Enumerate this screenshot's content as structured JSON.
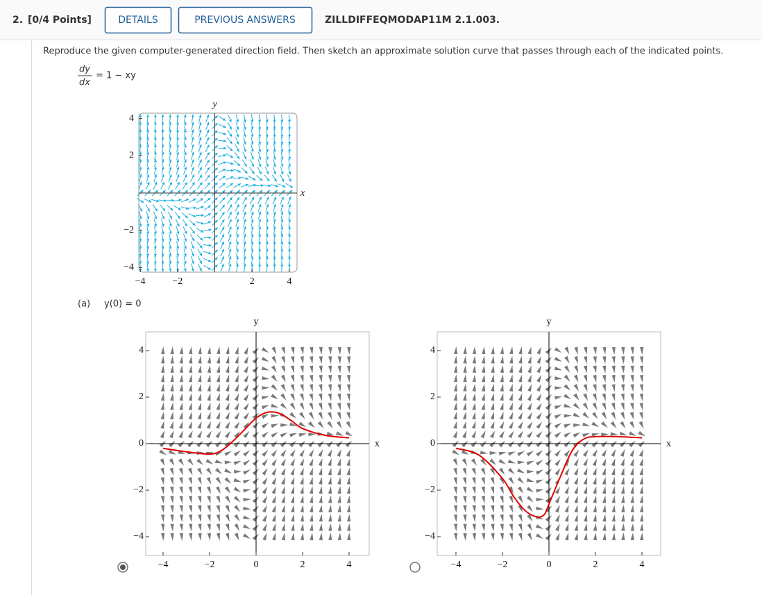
{
  "header": {
    "number": "2.",
    "points": "[0/4 Points]",
    "details": "DETAILS",
    "previous": "PREVIOUS ANSWERS",
    "code": "ZILLDIFFEQMODAP11M 2.1.003."
  },
  "prompt": "Reproduce the given computer-generated direction field. Then sketch an approximate solution curve that passes through each of the indicated points.",
  "equation": {
    "numerator": "dy",
    "denominator": "dx",
    "rhs": "= 1 − xy"
  },
  "field": {
    "x_label": "x",
    "y_label": "y",
    "xticks": [
      {
        "value": -4,
        "label": "−4"
      },
      {
        "value": -2,
        "label": "−2"
      },
      2,
      4
    ],
    "yticks": [
      4,
      2,
      {
        "value": -2,
        "label": "−2"
      },
      {
        "value": -4,
        "label": "−4"
      }
    ]
  },
  "part": {
    "label": "(a)",
    "condition": "y(0) = 0"
  },
  "options": [
    {
      "selected": true,
      "x_label": "x",
      "y_label": "y",
      "xticks": [
        {
          "value": -4,
          "label": "−4"
        },
        {
          "value": -2,
          "label": "−2"
        },
        0,
        2,
        4
      ],
      "yticks": [
        4,
        2,
        0,
        {
          "value": -2,
          "label": "−2"
        },
        {
          "value": -4,
          "label": "−4"
        }
      ],
      "curve": {
        "x": [
          -4,
          -3,
          -2,
          -1.5,
          -1,
          -0.5,
          0,
          0.5,
          1,
          1.5,
          2,
          3,
          4
        ],
        "y": [
          -0.2,
          -0.35,
          -0.45,
          -0.3,
          0.1,
          0.6,
          1.1,
          1.35,
          1.3,
          1.0,
          0.65,
          0.35,
          0.25
        ]
      }
    },
    {
      "selected": false,
      "x_label": "x",
      "y_label": "y",
      "xticks": [
        {
          "value": -4,
          "label": "−4"
        },
        {
          "value": -2,
          "label": "−2"
        },
        0,
        2,
        4
      ],
      "yticks": [
        4,
        2,
        0,
        {
          "value": -2,
          "label": "−2"
        },
        {
          "value": -4,
          "label": "−4"
        }
      ],
      "curve": {
        "x": [
          -4,
          -3,
          -2,
          -1.5,
          -1,
          -0.5,
          -0.2,
          0,
          0.5,
          1,
          1.5,
          2,
          3,
          4
        ],
        "y": [
          -0.2,
          -0.5,
          -1.5,
          -2.3,
          -2.9,
          -3.15,
          -3.05,
          -2.6,
          -1.4,
          -0.3,
          0.2,
          0.3,
          0.3,
          0.25
        ]
      }
    }
  ]
}
